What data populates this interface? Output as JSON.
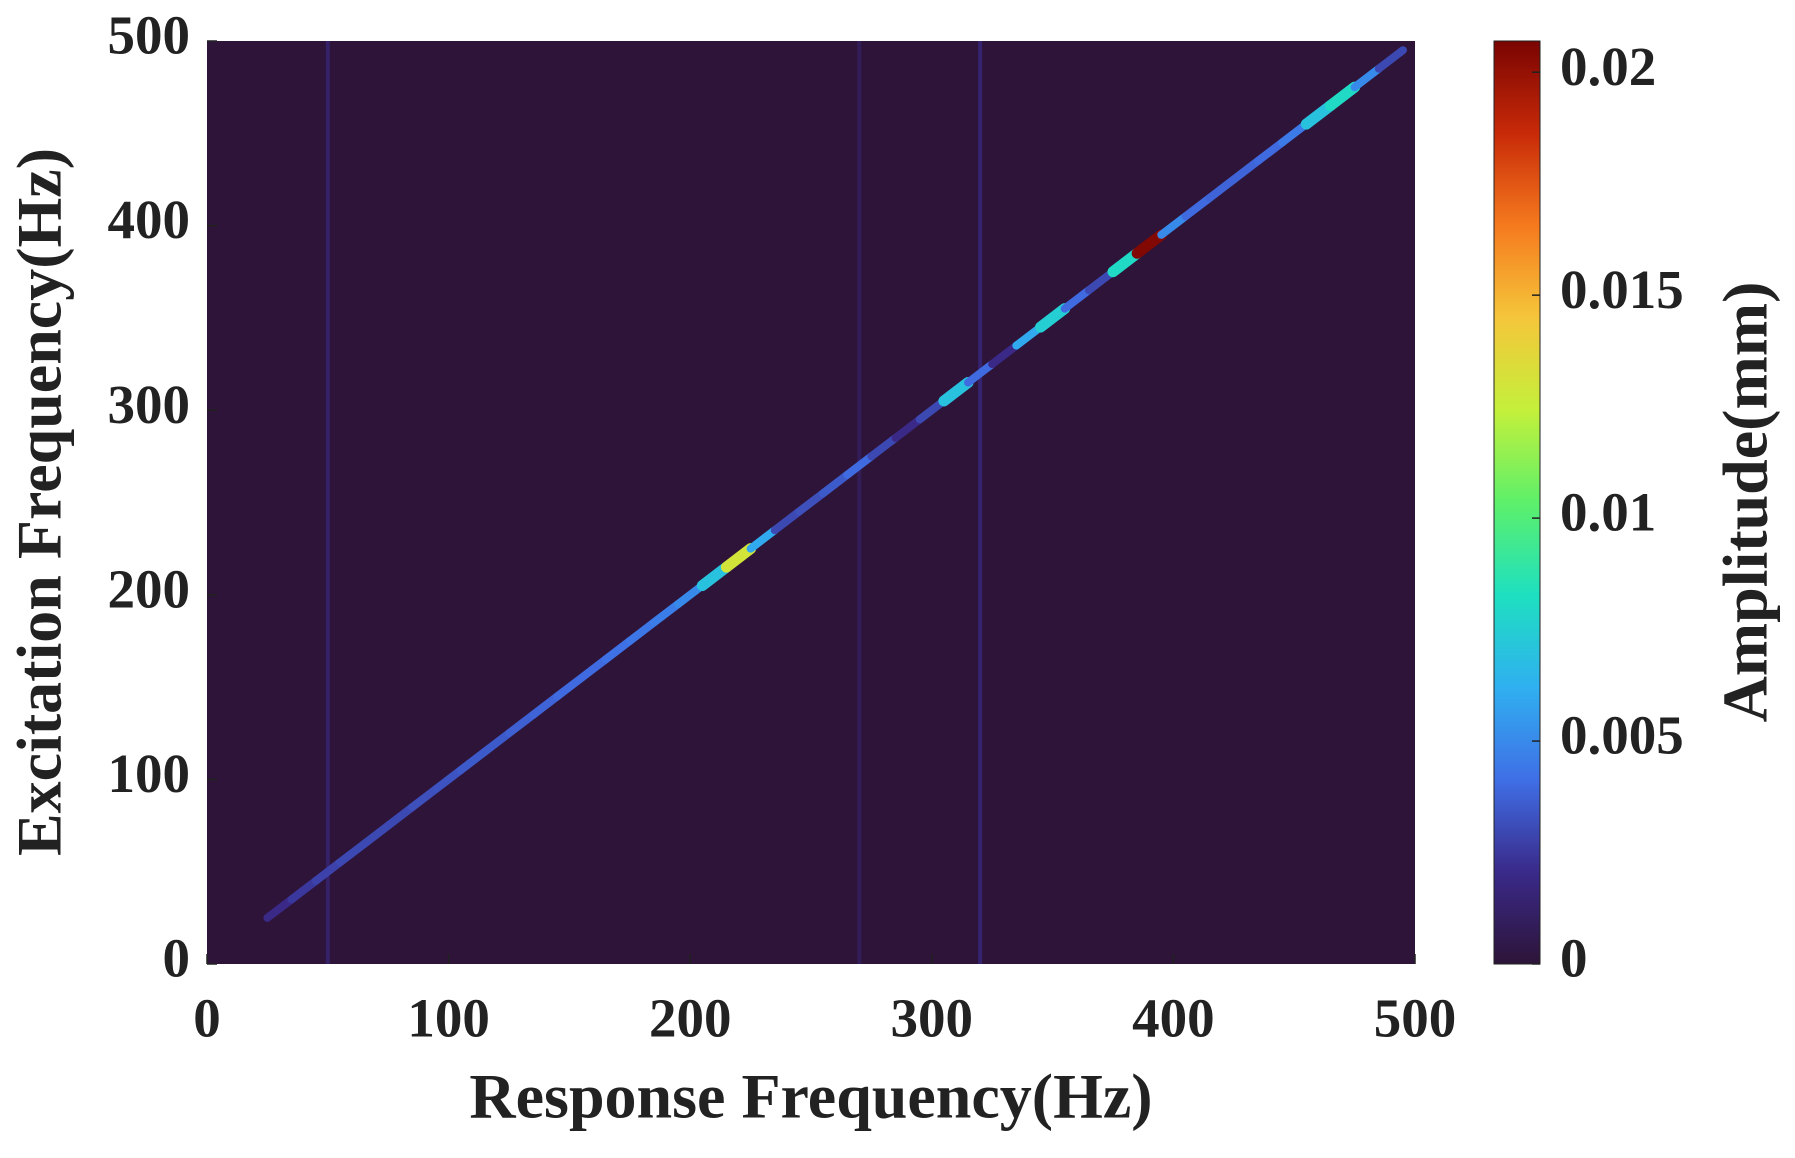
{
  "chart_data": {
    "type": "heatmap",
    "xlabel": "Response Frequency(Hz)",
    "ylabel": "Excitation Frequency(Hz)",
    "colorbar_label": "Amplitude(mm)",
    "xlim": [
      0,
      500
    ],
    "ylim": [
      0,
      500
    ],
    "xticks": [
      0,
      100,
      200,
      300,
      400,
      500
    ],
    "yticks": [
      0,
      100,
      200,
      300,
      400,
      500
    ],
    "clim": [
      0,
      0.0207
    ],
    "cticks": [
      0,
      0.005,
      0.01,
      0.015,
      0.02
    ],
    "colormap": [
      "#2d1438",
      "#3a2a8a",
      "#3f6fe6",
      "#2fb0f0",
      "#1ee0c0",
      "#5df06a",
      "#c4f03a",
      "#f5c63a",
      "#f57a1e",
      "#c82a08",
      "#7a0402"
    ],
    "x": [
      30,
      40,
      50,
      60,
      70,
      80,
      90,
      100,
      110,
      120,
      130,
      140,
      150,
      160,
      170,
      180,
      190,
      200,
      210,
      220,
      230,
      240,
      250,
      260,
      270,
      280,
      290,
      300,
      310,
      320,
      330,
      340,
      350,
      360,
      370,
      380,
      390,
      400,
      410,
      420,
      430,
      440,
      450,
      460,
      470,
      480,
      490
    ],
    "y": [
      30,
      40,
      50,
      60,
      70,
      80,
      90,
      100,
      110,
      120,
      130,
      140,
      150,
      160,
      170,
      180,
      190,
      200,
      210,
      220,
      230,
      240,
      250,
      260,
      270,
      280,
      290,
      300,
      310,
      320,
      330,
      340,
      350,
      360,
      370,
      380,
      390,
      400,
      410,
      420,
      430,
      440,
      450,
      460,
      470,
      480,
      490
    ],
    "values": [
      0.002,
      0.0025,
      0.0028,
      0.003,
      0.003,
      0.003,
      0.0032,
      0.0033,
      0.0035,
      0.0035,
      0.0037,
      0.0038,
      0.004,
      0.004,
      0.0042,
      0.0044,
      0.0046,
      0.005,
      0.007,
      0.013,
      0.006,
      0.003,
      0.0032,
      0.0035,
      0.004,
      0.003,
      0.002,
      0.003,
      0.007,
      0.004,
      0.002,
      0.006,
      0.0075,
      0.004,
      0.003,
      0.008,
      0.0205,
      0.005,
      0.004,
      0.0038,
      0.0038,
      0.004,
      0.0045,
      0.007,
      0.008,
      0.005,
      0.003
    ],
    "vertical_lines_x": [
      50,
      270,
      320
    ],
    "vertical_lines_values": [
      0.0012,
      0.0008,
      0.0014
    ]
  }
}
